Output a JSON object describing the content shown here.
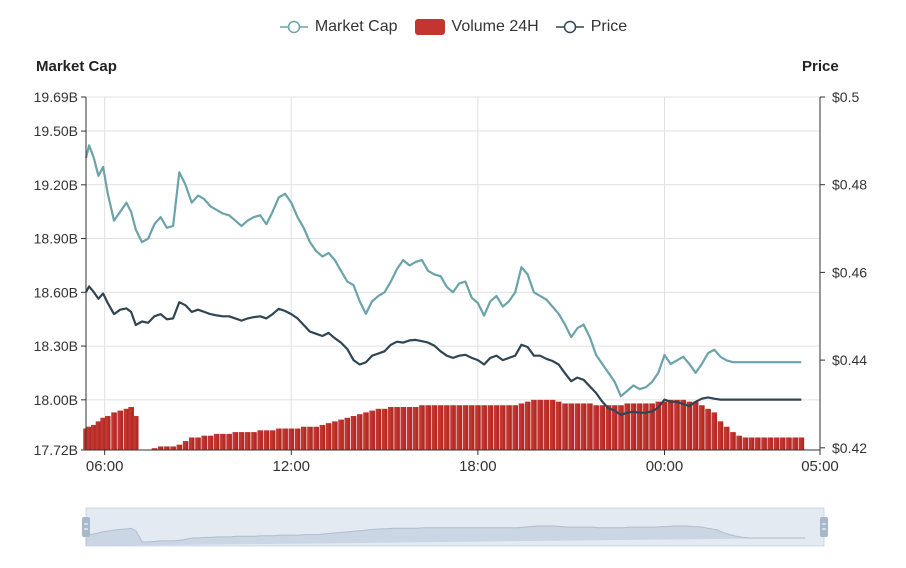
{
  "legend": {
    "items": [
      {
        "label": "Market Cap",
        "color": "#6aa3aa",
        "icon": "circle-line"
      },
      {
        "label": "Volume 24H",
        "color": "#c23531",
        "icon": "rounded-rect"
      },
      {
        "label": "Price",
        "color": "#2f4554",
        "icon": "circle-line"
      }
    ]
  },
  "chart_data": {
    "type": "line",
    "left_axis_title": "Market Cap",
    "right_axis_title": "Price",
    "x_ticks": [
      "06:00",
      "12:00",
      "18:00",
      "00:00",
      "05:00"
    ],
    "left_ticks": [
      "19.69B",
      "19.50B",
      "19.20B",
      "18.90B",
      "18.60B",
      "18.30B",
      "18.00B",
      "17.72B"
    ],
    "left_tick_values": [
      19.69,
      19.5,
      19.2,
      18.9,
      18.6,
      18.3,
      18.0,
      17.72
    ],
    "ylim_left": [
      17.72,
      19.69
    ],
    "right_ticks": [
      "$0.5",
      "$0.48",
      "$0.46",
      "$0.44",
      "$0.42"
    ],
    "right_tick_values": [
      0.5,
      0.48,
      0.46,
      0.44,
      0.42
    ],
    "ylim_right": [
      0.4195,
      0.5
    ],
    "x_hours": [
      5.4,
      5.5,
      5.65,
      5.8,
      5.95,
      6.1,
      6.3,
      6.5,
      6.7,
      6.85,
      7.0,
      7.2,
      7.4,
      7.6,
      7.8,
      8.0,
      8.2,
      8.4,
      8.6,
      8.8,
      9.0,
      9.2,
      9.4,
      9.6,
      9.8,
      10.0,
      10.2,
      10.4,
      10.6,
      10.8,
      11.0,
      11.2,
      11.4,
      11.6,
      11.8,
      12.0,
      12.2,
      12.4,
      12.6,
      12.8,
      13.0,
      13.2,
      13.4,
      13.6,
      13.8,
      14.0,
      14.2,
      14.4,
      14.6,
      14.8,
      15.0,
      15.2,
      15.4,
      15.6,
      15.8,
      16.0,
      16.2,
      16.4,
      16.6,
      16.8,
      17.0,
      17.2,
      17.4,
      17.6,
      17.8,
      18.0,
      18.2,
      18.4,
      18.6,
      18.8,
      19.0,
      19.2,
      19.4,
      19.6,
      19.8,
      20.0,
      20.2,
      20.4,
      20.6,
      20.8,
      21.0,
      21.2,
      21.4,
      21.6,
      21.8,
      22.0,
      22.2,
      22.4,
      22.6,
      22.8,
      23.0,
      23.2,
      23.4,
      23.6,
      23.8,
      24.0,
      24.2,
      24.4,
      24.6,
      24.8,
      25.0,
      25.2,
      25.4,
      25.6,
      25.8,
      26.0,
      26.2,
      26.4,
      26.6,
      26.8,
      27.0,
      27.2,
      27.4,
      27.6,
      27.8,
      28.0,
      28.2,
      28.4,
      28.6,
      28.8,
      29.0
    ],
    "series": [
      {
        "name": "Market Cap",
        "axis": "left",
        "color": "#6aa3aa",
        "values": [
          19.35,
          19.42,
          19.35,
          19.25,
          19.3,
          19.15,
          19.0,
          19.05,
          19.1,
          19.05,
          18.95,
          18.88,
          18.9,
          18.98,
          19.02,
          18.96,
          18.97,
          19.27,
          19.2,
          19.1,
          19.14,
          19.12,
          19.08,
          19.06,
          19.04,
          19.03,
          19.0,
          18.97,
          19.0,
          19.02,
          19.03,
          18.98,
          19.05,
          19.13,
          19.15,
          19.1,
          19.02,
          18.96,
          18.88,
          18.83,
          18.8,
          18.82,
          18.78,
          18.72,
          18.66,
          18.64,
          18.55,
          18.48,
          18.55,
          18.58,
          18.6,
          18.66,
          18.73,
          18.78,
          18.75,
          18.77,
          18.78,
          18.72,
          18.7,
          18.69,
          18.63,
          18.6,
          18.65,
          18.66,
          18.57,
          18.54,
          18.47,
          18.55,
          18.58,
          18.52,
          18.55,
          18.6,
          18.74,
          18.7,
          18.6,
          18.58,
          18.56,
          18.52,
          18.48,
          18.42,
          18.35,
          18.4,
          18.42,
          18.35,
          18.25,
          18.2,
          18.15,
          18.1,
          18.02,
          18.05,
          18.08,
          18.06,
          18.07,
          18.1,
          18.15,
          18.25,
          18.2,
          18.22,
          18.24,
          18.2,
          18.15,
          18.2,
          18.26,
          18.28,
          18.24,
          18.22,
          18.21,
          18.21,
          18.21,
          18.21,
          18.21,
          18.21,
          18.21,
          18.21,
          18.21,
          18.21,
          18.21,
          18.21
        ]
      },
      {
        "name": "Volume 24H",
        "axis": "left",
        "color": "#c23531",
        "values": [
          17.84,
          17.85,
          17.86,
          17.88,
          17.9,
          17.91,
          17.93,
          17.94,
          17.95,
          17.96,
          17.91,
          17.72,
          17.72,
          17.73,
          17.74,
          17.74,
          17.74,
          17.75,
          17.77,
          17.79,
          17.79,
          17.8,
          17.8,
          17.81,
          17.81,
          17.81,
          17.82,
          17.82,
          17.82,
          17.82,
          17.83,
          17.83,
          17.83,
          17.84,
          17.84,
          17.84,
          17.84,
          17.85,
          17.85,
          17.85,
          17.86,
          17.87,
          17.88,
          17.89,
          17.9,
          17.91,
          17.92,
          17.93,
          17.94,
          17.95,
          17.95,
          17.96,
          17.96,
          17.96,
          17.96,
          17.96,
          17.97,
          17.97,
          17.97,
          17.97,
          17.97,
          17.97,
          17.97,
          17.97,
          17.97,
          17.97,
          17.97,
          17.97,
          17.97,
          17.97,
          17.97,
          17.97,
          17.98,
          17.99,
          18.0,
          18.0,
          18.0,
          18.0,
          17.99,
          17.98,
          17.98,
          17.98,
          17.98,
          17.98,
          17.97,
          17.97,
          17.97,
          17.97,
          17.97,
          17.98,
          17.98,
          17.98,
          17.98,
          17.98,
          17.99,
          17.99,
          18.0,
          18.0,
          18.0,
          17.99,
          17.99,
          17.97,
          17.95,
          17.93,
          17.88,
          17.85,
          17.82,
          17.8,
          17.79,
          17.79,
          17.79,
          17.79,
          17.79,
          17.79,
          17.79,
          17.79,
          17.79,
          17.79
        ]
      },
      {
        "name": "Price",
        "axis": "right",
        "color": "#2f4554",
        "values": [
          0.4555,
          0.4568,
          0.4555,
          0.454,
          0.4552,
          0.453,
          0.4505,
          0.4515,
          0.4518,
          0.451,
          0.448,
          0.4488,
          0.4485,
          0.45,
          0.4505,
          0.4493,
          0.4495,
          0.4532,
          0.4525,
          0.451,
          0.4515,
          0.451,
          0.4505,
          0.4502,
          0.45,
          0.45,
          0.4495,
          0.449,
          0.4495,
          0.4498,
          0.45,
          0.4495,
          0.4505,
          0.4517,
          0.4512,
          0.4505,
          0.4495,
          0.448,
          0.4465,
          0.446,
          0.4455,
          0.4462,
          0.445,
          0.444,
          0.4425,
          0.44,
          0.439,
          0.4395,
          0.441,
          0.4415,
          0.442,
          0.4435,
          0.4442,
          0.444,
          0.4445,
          0.4446,
          0.4443,
          0.444,
          0.4433,
          0.442,
          0.441,
          0.4405,
          0.441,
          0.4412,
          0.4405,
          0.44,
          0.439,
          0.4405,
          0.441,
          0.44,
          0.4405,
          0.441,
          0.4435,
          0.443,
          0.441,
          0.441,
          0.4403,
          0.4398,
          0.439,
          0.437,
          0.4352,
          0.436,
          0.4355,
          0.434,
          0.4325,
          0.4305,
          0.429,
          0.4285,
          0.4275,
          0.428,
          0.4282,
          0.428,
          0.428,
          0.4283,
          0.4292,
          0.431,
          0.4305,
          0.4305,
          0.43,
          0.4295,
          0.4305,
          0.4312,
          0.4315,
          0.4312,
          0.431,
          0.431,
          0.431,
          0.431,
          0.431,
          0.431,
          0.431,
          0.431,
          0.431,
          0.431,
          0.431,
          0.431,
          0.431,
          0.431
        ]
      }
    ]
  },
  "zoom": {
    "start_fraction": 0.0,
    "end_fraction": 1.0,
    "fill_color": "#d8dfeb",
    "line_color": "#b8bfca",
    "handle_color": "#a7b7cc"
  }
}
